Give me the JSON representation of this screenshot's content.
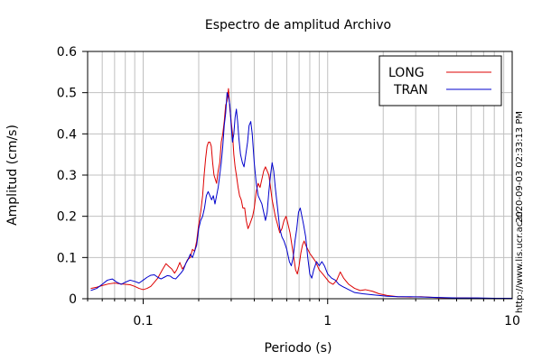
{
  "chart_data": {
    "type": "line",
    "title": "Espectro de amplitud Archivo",
    "xlabel": "Periodo (s)",
    "ylabel": "Amplitud (cm/s)",
    "x_scale": "log",
    "xlim": [
      0.05,
      10
    ],
    "ylim": [
      0,
      0.6
    ],
    "grid": true,
    "legend_position": "top-right",
    "x_ticks": [
      {
        "value": 0.1,
        "label": "0.1"
      },
      {
        "value": 1,
        "label": "1"
      },
      {
        "value": 10,
        "label": "10"
      }
    ],
    "y_ticks": [
      {
        "value": 0,
        "label": "0"
      },
      {
        "value": 0.1,
        "label": "0.1"
      },
      {
        "value": 0.2,
        "label": "0.2"
      },
      {
        "value": 0.3,
        "label": "0.3"
      },
      {
        "value": 0.4,
        "label": "0.4"
      },
      {
        "value": 0.5,
        "label": "0.5"
      },
      {
        "value": 0.6,
        "label": "0.6"
      }
    ],
    "series": [
      {
        "name": "LONG",
        "color": "#dd0000",
        "points": [
          [
            0.052,
            0.025
          ],
          [
            0.056,
            0.028
          ],
          [
            0.06,
            0.032
          ],
          [
            0.065,
            0.036
          ],
          [
            0.07,
            0.038
          ],
          [
            0.075,
            0.036
          ],
          [
            0.08,
            0.035
          ],
          [
            0.085,
            0.034
          ],
          [
            0.09,
            0.03
          ],
          [
            0.095,
            0.025
          ],
          [
            0.1,
            0.022
          ],
          [
            0.105,
            0.025
          ],
          [
            0.11,
            0.03
          ],
          [
            0.115,
            0.04
          ],
          [
            0.12,
            0.05
          ],
          [
            0.127,
            0.07
          ],
          [
            0.133,
            0.085
          ],
          [
            0.138,
            0.078
          ],
          [
            0.143,
            0.072
          ],
          [
            0.148,
            0.062
          ],
          [
            0.152,
            0.07
          ],
          [
            0.158,
            0.088
          ],
          [
            0.163,
            0.072
          ],
          [
            0.168,
            0.08
          ],
          [
            0.174,
            0.095
          ],
          [
            0.18,
            0.1
          ],
          [
            0.185,
            0.12
          ],
          [
            0.19,
            0.115
          ],
          [
            0.195,
            0.14
          ],
          [
            0.2,
            0.18
          ],
          [
            0.205,
            0.21
          ],
          [
            0.21,
            0.25
          ],
          [
            0.214,
            0.3
          ],
          [
            0.218,
            0.34
          ],
          [
            0.222,
            0.37
          ],
          [
            0.226,
            0.38
          ],
          [
            0.23,
            0.38
          ],
          [
            0.234,
            0.37
          ],
          [
            0.238,
            0.33
          ],
          [
            0.242,
            0.3
          ],
          [
            0.246,
            0.29
          ],
          [
            0.25,
            0.28
          ],
          [
            0.255,
            0.31
          ],
          [
            0.26,
            0.33
          ],
          [
            0.265,
            0.38
          ],
          [
            0.27,
            0.4
          ],
          [
            0.275,
            0.43
          ],
          [
            0.28,
            0.47
          ],
          [
            0.285,
            0.48
          ],
          [
            0.29,
            0.51
          ],
          [
            0.295,
            0.46
          ],
          [
            0.3,
            0.43
          ],
          [
            0.305,
            0.4
          ],
          [
            0.31,
            0.35
          ],
          [
            0.315,
            0.32
          ],
          [
            0.32,
            0.3
          ],
          [
            0.327,
            0.27
          ],
          [
            0.333,
            0.25
          ],
          [
            0.34,
            0.24
          ],
          [
            0.347,
            0.22
          ],
          [
            0.355,
            0.22
          ],
          [
            0.362,
            0.19
          ],
          [
            0.37,
            0.17
          ],
          [
            0.378,
            0.18
          ],
          [
            0.385,
            0.19
          ],
          [
            0.392,
            0.2
          ],
          [
            0.4,
            0.22
          ],
          [
            0.41,
            0.26
          ],
          [
            0.42,
            0.28
          ],
          [
            0.43,
            0.27
          ],
          [
            0.44,
            0.29
          ],
          [
            0.45,
            0.31
          ],
          [
            0.46,
            0.32
          ],
          [
            0.47,
            0.31
          ],
          [
            0.48,
            0.3
          ],
          [
            0.49,
            0.27
          ],
          [
            0.5,
            0.24
          ],
          [
            0.51,
            0.22
          ],
          [
            0.52,
            0.2
          ],
          [
            0.535,
            0.18
          ],
          [
            0.55,
            0.16
          ],
          [
            0.565,
            0.17
          ],
          [
            0.58,
            0.19
          ],
          [
            0.595,
            0.2
          ],
          [
            0.61,
            0.18
          ],
          [
            0.625,
            0.16
          ],
          [
            0.64,
            0.13
          ],
          [
            0.655,
            0.1
          ],
          [
            0.67,
            0.07
          ],
          [
            0.685,
            0.06
          ],
          [
            0.7,
            0.08
          ],
          [
            0.715,
            0.11
          ],
          [
            0.73,
            0.13
          ],
          [
            0.745,
            0.14
          ],
          [
            0.76,
            0.13
          ],
          [
            0.78,
            0.12
          ],
          [
            0.8,
            0.11
          ],
          [
            0.83,
            0.1
          ],
          [
            0.86,
            0.09
          ],
          [
            0.9,
            0.07
          ],
          [
            0.94,
            0.06
          ],
          [
            0.98,
            0.05
          ],
          [
            1.02,
            0.04
          ],
          [
            1.07,
            0.035
          ],
          [
            1.12,
            0.045
          ],
          [
            1.17,
            0.065
          ],
          [
            1.22,
            0.05
          ],
          [
            1.3,
            0.035
          ],
          [
            1.4,
            0.025
          ],
          [
            1.5,
            0.02
          ],
          [
            1.6,
            0.022
          ],
          [
            1.75,
            0.018
          ],
          [
            1.9,
            0.012
          ],
          [
            2.1,
            0.008
          ],
          [
            2.4,
            0.005
          ],
          [
            2.8,
            0.004
          ],
          [
            3.2,
            0.005
          ],
          [
            3.8,
            0.003
          ],
          [
            4.5,
            0.002
          ],
          [
            5.5,
            0.002
          ],
          [
            7,
            0.001
          ],
          [
            9,
            0.001
          ],
          [
            10,
            0.001
          ]
        ]
      },
      {
        "name": "TRAN",
        "color": "#0000cc",
        "points": [
          [
            0.052,
            0.02
          ],
          [
            0.056,
            0.025
          ],
          [
            0.06,
            0.035
          ],
          [
            0.064,
            0.045
          ],
          [
            0.068,
            0.048
          ],
          [
            0.072,
            0.04
          ],
          [
            0.076,
            0.035
          ],
          [
            0.08,
            0.04
          ],
          [
            0.085,
            0.045
          ],
          [
            0.09,
            0.042
          ],
          [
            0.095,
            0.038
          ],
          [
            0.1,
            0.045
          ],
          [
            0.105,
            0.052
          ],
          [
            0.11,
            0.057
          ],
          [
            0.115,
            0.058
          ],
          [
            0.12,
            0.052
          ],
          [
            0.125,
            0.048
          ],
          [
            0.13,
            0.052
          ],
          [
            0.135,
            0.056
          ],
          [
            0.14,
            0.055
          ],
          [
            0.145,
            0.05
          ],
          [
            0.15,
            0.048
          ],
          [
            0.155,
            0.055
          ],
          [
            0.16,
            0.062
          ],
          [
            0.165,
            0.07
          ],
          [
            0.17,
            0.085
          ],
          [
            0.175,
            0.095
          ],
          [
            0.18,
            0.108
          ],
          [
            0.185,
            0.1
          ],
          [
            0.19,
            0.115
          ],
          [
            0.195,
            0.13
          ],
          [
            0.2,
            0.17
          ],
          [
            0.205,
            0.19
          ],
          [
            0.21,
            0.2
          ],
          [
            0.215,
            0.22
          ],
          [
            0.22,
            0.25
          ],
          [
            0.225,
            0.26
          ],
          [
            0.23,
            0.25
          ],
          [
            0.235,
            0.24
          ],
          [
            0.24,
            0.25
          ],
          [
            0.245,
            0.23
          ],
          [
            0.25,
            0.25
          ],
          [
            0.255,
            0.27
          ],
          [
            0.26,
            0.3
          ],
          [
            0.265,
            0.33
          ],
          [
            0.27,
            0.37
          ],
          [
            0.275,
            0.42
          ],
          [
            0.28,
            0.45
          ],
          [
            0.285,
            0.5
          ],
          [
            0.29,
            0.49
          ],
          [
            0.295,
            0.47
          ],
          [
            0.3,
            0.42
          ],
          [
            0.305,
            0.38
          ],
          [
            0.31,
            0.4
          ],
          [
            0.315,
            0.44
          ],
          [
            0.32,
            0.46
          ],
          [
            0.325,
            0.43
          ],
          [
            0.33,
            0.39
          ],
          [
            0.337,
            0.35
          ],
          [
            0.345,
            0.33
          ],
          [
            0.352,
            0.32
          ],
          [
            0.36,
            0.35
          ],
          [
            0.368,
            0.38
          ],
          [
            0.375,
            0.42
          ],
          [
            0.383,
            0.43
          ],
          [
            0.39,
            0.4
          ],
          [
            0.4,
            0.33
          ],
          [
            0.41,
            0.28
          ],
          [
            0.42,
            0.25
          ],
          [
            0.43,
            0.24
          ],
          [
            0.44,
            0.23
          ],
          [
            0.45,
            0.21
          ],
          [
            0.46,
            0.19
          ],
          [
            0.47,
            0.21
          ],
          [
            0.48,
            0.26
          ],
          [
            0.49,
            0.3
          ],
          [
            0.5,
            0.33
          ],
          [
            0.51,
            0.31
          ],
          [
            0.52,
            0.27
          ],
          [
            0.535,
            0.22
          ],
          [
            0.55,
            0.17
          ],
          [
            0.565,
            0.15
          ],
          [
            0.58,
            0.14
          ],
          [
            0.6,
            0.12
          ],
          [
            0.62,
            0.09
          ],
          [
            0.635,
            0.08
          ],
          [
            0.65,
            0.1
          ],
          [
            0.665,
            0.14
          ],
          [
            0.68,
            0.17
          ],
          [
            0.695,
            0.21
          ],
          [
            0.71,
            0.22
          ],
          [
            0.725,
            0.2
          ],
          [
            0.74,
            0.18
          ],
          [
            0.76,
            0.15
          ],
          [
            0.78,
            0.1
          ],
          [
            0.8,
            0.06
          ],
          [
            0.82,
            0.05
          ],
          [
            0.84,
            0.07
          ],
          [
            0.87,
            0.09
          ],
          [
            0.9,
            0.08
          ],
          [
            0.93,
            0.09
          ],
          [
            0.96,
            0.08
          ],
          [
            1.0,
            0.06
          ],
          [
            1.05,
            0.05
          ],
          [
            1.1,
            0.045
          ],
          [
            1.15,
            0.035
          ],
          [
            1.2,
            0.03
          ],
          [
            1.3,
            0.022
          ],
          [
            1.4,
            0.015
          ],
          [
            1.55,
            0.012
          ],
          [
            1.7,
            0.01
          ],
          [
            1.9,
            0.008
          ],
          [
            2.1,
            0.006
          ],
          [
            2.4,
            0.005
          ],
          [
            2.8,
            0.005
          ],
          [
            3.3,
            0.004
          ],
          [
            4,
            0.003
          ],
          [
            5,
            0.002
          ],
          [
            6.5,
            0.002
          ],
          [
            8,
            0.001
          ],
          [
            10,
            0.001
          ]
        ]
      }
    ]
  },
  "side_notes": {
    "timestamp": "2020-09-03 02:33:13 PM",
    "url": "http://www.lis.ucr.ac.cr"
  }
}
